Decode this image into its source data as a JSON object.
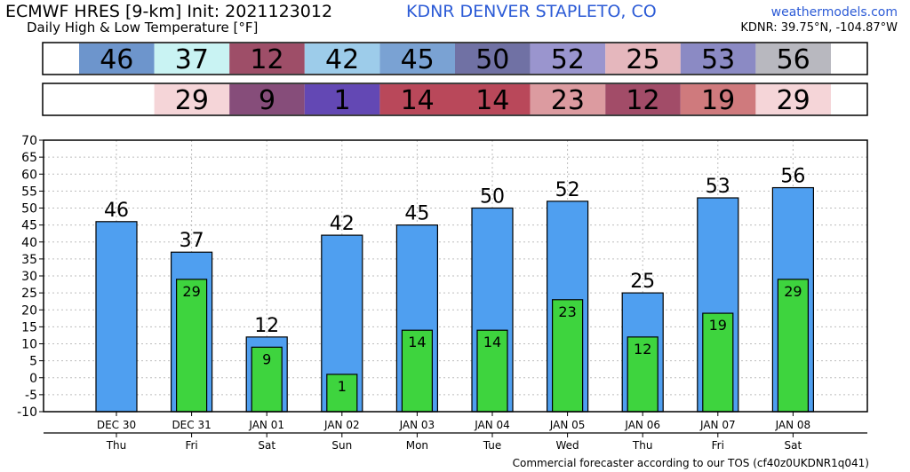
{
  "header": {
    "title": "ECMWF HRES [9-km] Init: 2021123012",
    "subtitle": "Daily High & Low Temperature [°F]",
    "station": "KDNR DENVER STAPLETO, CO",
    "site": "weathermodels.com",
    "coords": "KDNR: 39.75°N, -104.87°W"
  },
  "footer": {
    "note": "Commercial forecaster according to our TOS (cf40z0UKDNR1q041)"
  },
  "colors": {
    "high_bar": "#4f9ff0",
    "low_bar": "#3ed43e",
    "bar_outline": "#000000",
    "grid": "#bdbdbd"
  },
  "high_strip": {
    "values": [
      46,
      37,
      12,
      42,
      45,
      50,
      52,
      25,
      53,
      56
    ],
    "cell_colors": [
      "#6d95cc",
      "#c9f3f3",
      "#9e4e68",
      "#9dccea",
      "#7aa2d3",
      "#7071a4",
      "#9a95ce",
      "#e5b7bd",
      "#8b8ac4",
      "#b8b8bf"
    ]
  },
  "low_strip": {
    "values": [
      null,
      29,
      9,
      1,
      14,
      14,
      23,
      12,
      19,
      29
    ],
    "cell_colors": [
      null,
      "#f5d5d8",
      "#864d7a",
      "#6348b4",
      "#b9485a",
      "#b9485a",
      "#dc9ba0",
      "#a24c68",
      "#cf7a7d",
      "#f5d5d8"
    ]
  },
  "chart_data": {
    "type": "bar",
    "categories": [
      "DEC 30",
      "DEC 31",
      "JAN 01",
      "JAN 02",
      "JAN 03",
      "JAN 04",
      "JAN 05",
      "JAN 06",
      "JAN 07",
      "JAN 08"
    ],
    "weekdays": [
      "Thu",
      "Fri",
      "Sat",
      "Sun",
      "Mon",
      "Tue",
      "Wed",
      "Thu",
      "Fri",
      "Sat"
    ],
    "series": [
      {
        "values": [
          46,
          37,
          12,
          42,
          45,
          50,
          52,
          25,
          53,
          56
        ]
      },
      {
        "values": [
          null,
          29,
          9,
          1,
          14,
          14,
          23,
          12,
          19,
          29
        ]
      }
    ],
    "ylim": [
      -10,
      70
    ],
    "yticks": [
      -10,
      -5,
      0,
      5,
      10,
      15,
      20,
      25,
      30,
      35,
      40,
      45,
      50,
      55,
      60,
      65,
      70
    ],
    "grid": true
  }
}
